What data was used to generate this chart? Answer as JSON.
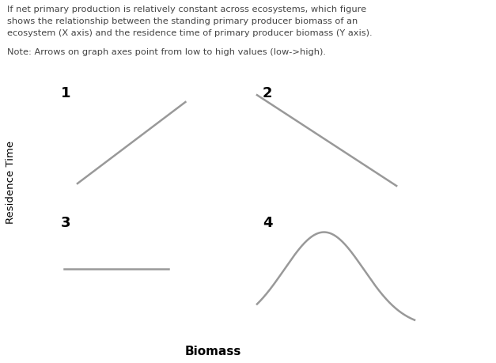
{
  "title_line1": "If net primary production is relatively constant across ecosystems, which figure",
  "title_line2": "shows the relationship between the standing primary producer biomass of an",
  "title_line3": "ecosystem (X axis) and the residence time of primary producer biomass (Y axis).",
  "note_text": "Note: Arrows on graph axes point from low to high values (low->high).",
  "xlabel": "Biomass",
  "ylabel": "Residence Time",
  "background_color": "#ffffff",
  "line_color": "#999999",
  "axis_color": "#111111",
  "text_color": "#444444"
}
